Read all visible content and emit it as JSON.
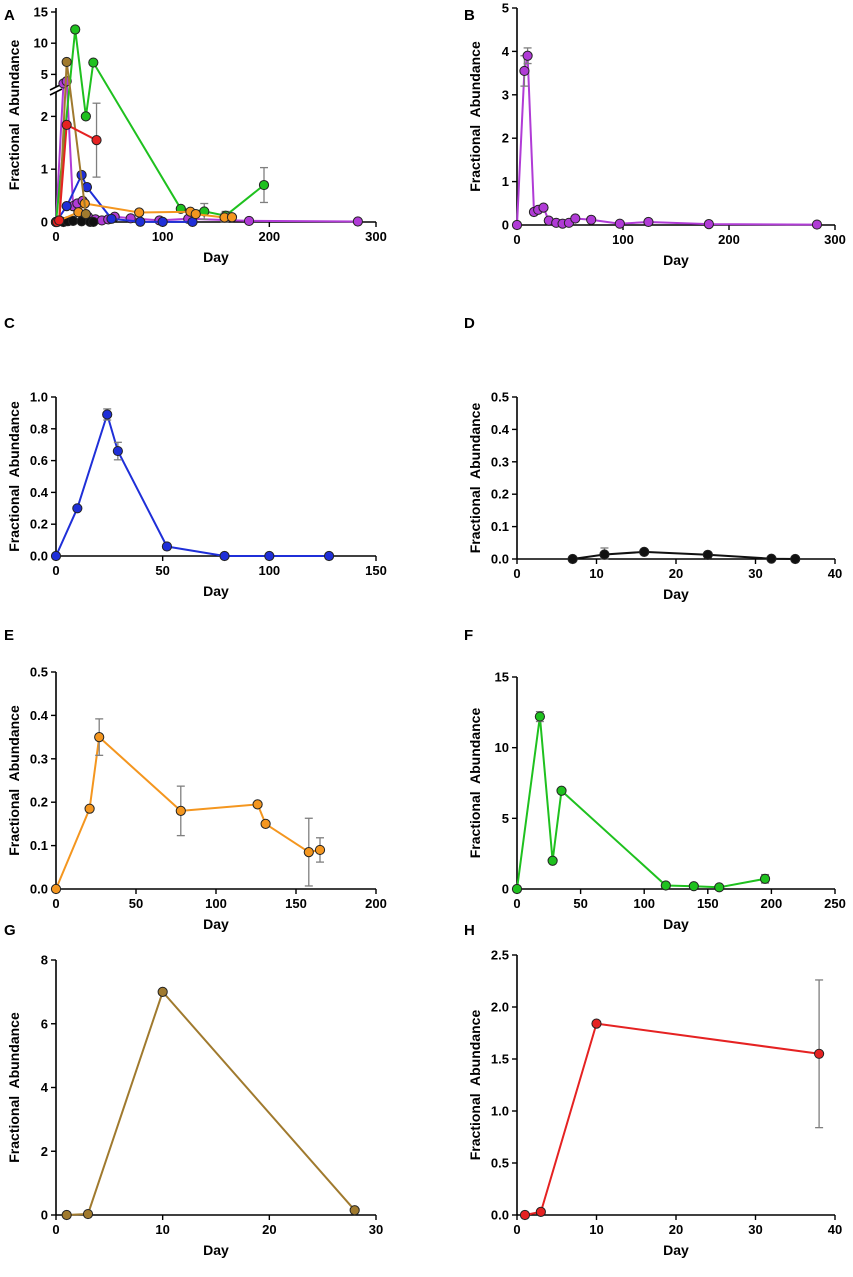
{
  "figure": {
    "chart_data": [
      {
        "panel": "A",
        "type": "line",
        "xlabel": "Day",
        "ylabel": "Fractional Abundance",
        "xlim": [
          0,
          300
        ],
        "x_ticks": [
          "0",
          "100",
          "200",
          "300"
        ],
        "y_break": true,
        "ylim_lower": [
          0,
          2.5
        ],
        "ylim_upper": [
          2.5,
          15
        ],
        "y_ticks": [
          "0",
          "1",
          "2",
          "5",
          "10",
          "15"
        ],
        "y_tick_values": [
          0,
          1,
          2,
          5,
          10,
          15
        ],
        "series": [
          {
            "name": "purple",
            "color": "#b03bd6",
            "x": [
              0,
              7,
              10,
              16,
              20,
              25,
              30,
              37,
              43,
              49,
              55,
              70,
              97,
              124,
              181,
              283
            ],
            "y": [
              0,
              3.55,
              3.9,
              0.3,
              0.35,
              0.4,
              0.1,
              0.05,
              0.03,
              0.05,
              0.1,
              0.07,
              0.03,
              0.06,
              0.02,
              0.01
            ],
            "err": [
              0,
              0.3,
              0.2,
              0,
              0,
              0,
              0,
              0,
              0,
              0,
              0,
              0,
              0,
              0,
              0,
              0
            ]
          },
          {
            "name": "green",
            "color": "#1fc11f",
            "x": [
              0,
              18,
              28,
              35,
              117,
              139,
              159,
              195
            ],
            "y": [
              0,
              12.2,
              2.0,
              6.9,
              0.25,
              0.2,
              0.12,
              0.7
            ],
            "err": [
              0,
              0.4,
              0,
              0,
              0,
              0.15,
              0.08,
              0.33
            ]
          },
          {
            "name": "blue",
            "color": "#1f2fd8",
            "x": [
              0,
              10,
              24,
              29,
              52,
              79,
              100,
              128
            ],
            "y": [
              0,
              0.3,
              0.89,
              0.66,
              0.06,
              0.005,
              0.002,
              0.001
            ],
            "err": [
              0,
              0,
              0.04,
              0.06,
              0,
              0,
              0,
              0
            ]
          },
          {
            "name": "black",
            "color": "#111111",
            "x": [
              0,
              7,
              11,
              16,
              24,
              32,
              35
            ],
            "y": [
              0,
              0,
              0.015,
              0.022,
              0.014,
              0.002,
              0.001
            ],
            "err": [
              0,
              0,
              0.02,
              0,
              0,
              0,
              0
            ]
          },
          {
            "name": "orange",
            "color": "#f4961f",
            "x": [
              0,
              21,
              27,
              78,
              126,
              131,
              158,
              165
            ],
            "y": [
              0,
              0.185,
              0.35,
              0.18,
              0.195,
              0.15,
              0.085,
              0.09
            ],
            "err": [
              0,
              0,
              0.04,
              0.055,
              0,
              0,
              0.08,
              0.03
            ]
          },
          {
            "name": "brown",
            "color": "#a07a2e",
            "x": [
              1,
              3,
              10,
              28
            ],
            "y": [
              0,
              0.03,
              7.0,
              0.15
            ],
            "err": [
              0,
              0,
              0,
              0
            ]
          },
          {
            "name": "red",
            "color": "#e52222",
            "x": [
              1,
              3,
              10,
              38
            ],
            "y": [
              0,
              0.03,
              1.84,
              1.55
            ],
            "err": [
              0,
              0,
              0,
              0.7
            ]
          }
        ]
      },
      {
        "panel": "B",
        "type": "line",
        "xlabel": "Day",
        "ylabel": "Fractional Abundance",
        "xlim": [
          0,
          300
        ],
        "ylim": [
          0,
          5
        ],
        "x_ticks": [
          "0",
          "100",
          "200",
          "300"
        ],
        "x_tick_values": [
          0,
          100,
          200,
          300
        ],
        "y_ticks": [
          "0",
          "1",
          "2",
          "3",
          "4",
          "5"
        ],
        "y_tick_values": [
          0,
          1,
          2,
          3,
          4,
          5
        ],
        "series": [
          {
            "name": "purple",
            "color": "#b03bd6",
            "x": [
              0,
              7,
              10,
              16,
              20,
              25,
              30,
              37,
              43,
              49,
              55,
              70,
              97,
              124,
              181,
              283
            ],
            "y": [
              0,
              3.55,
              3.9,
              0.3,
              0.35,
              0.4,
              0.1,
              0.05,
              0.03,
              0.05,
              0.15,
              0.12,
              0.03,
              0.07,
              0.02,
              0.01
            ],
            "err": [
              0,
              0.35,
              0.18,
              0,
              0,
              0,
              0,
              0,
              0,
              0,
              0,
              0,
              0,
              0,
              0,
              0
            ]
          }
        ]
      },
      {
        "panel": "C",
        "type": "line",
        "xlabel": "Day",
        "ylabel": "Fractional Abundance",
        "xlim": [
          0,
          150
        ],
        "ylim": [
          0,
          1.0
        ],
        "x_ticks": [
          "0",
          "50",
          "100",
          "150"
        ],
        "x_tick_values": [
          0,
          50,
          100,
          150
        ],
        "y_ticks": [
          "0.0",
          "0.2",
          "0.4",
          "0.6",
          "0.8",
          "1.0"
        ],
        "y_tick_values": [
          0,
          0.2,
          0.4,
          0.6,
          0.8,
          1.0
        ],
        "series": [
          {
            "name": "blue",
            "color": "#1f2fd8",
            "x": [
              0,
              10,
              24,
              29,
              52,
              79,
              100,
              128
            ],
            "y": [
              0,
              0.3,
              0.89,
              0.66,
              0.06,
              0.0,
              0.0,
              0.0
            ],
            "err": [
              0,
              0,
              0.035,
              0.055,
              0,
              0,
              0,
              0
            ]
          }
        ]
      },
      {
        "panel": "D",
        "type": "line",
        "xlabel": "Day",
        "ylabel": "Fractional Abundance",
        "xlim": [
          0,
          40
        ],
        "ylim": [
          0,
          0.5
        ],
        "x_ticks": [
          "0",
          "10",
          "20",
          "30",
          "40"
        ],
        "x_tick_values": [
          0,
          10,
          20,
          30,
          40
        ],
        "y_ticks": [
          "0.0",
          "0.1",
          "0.2",
          "0.3",
          "0.4",
          "0.5"
        ],
        "y_tick_values": [
          0,
          0.1,
          0.2,
          0.3,
          0.4,
          0.5
        ],
        "series": [
          {
            "name": "black",
            "color": "#111111",
            "x": [
              7,
              11,
              16,
              24,
              32,
              35
            ],
            "y": [
              0,
              0.014,
              0.022,
              0.013,
              0.001,
              0.0
            ],
            "err": [
              0,
              0.02,
              0,
              0,
              0,
              0
            ]
          }
        ]
      },
      {
        "panel": "E",
        "type": "line",
        "xlabel": "Day",
        "ylabel": "Fractional Abundance",
        "xlim": [
          0,
          200
        ],
        "ylim": [
          0,
          0.5
        ],
        "x_ticks": [
          "0",
          "50",
          "100",
          "150",
          "200"
        ],
        "x_tick_values": [
          0,
          50,
          100,
          150,
          200
        ],
        "y_ticks": [
          "0.0",
          "0.1",
          "0.2",
          "0.3",
          "0.4",
          "0.5"
        ],
        "y_tick_values": [
          0,
          0.1,
          0.2,
          0.3,
          0.4,
          0.5
        ],
        "series": [
          {
            "name": "orange",
            "color": "#f4961f",
            "x": [
              0,
              21,
              27,
              78,
              126,
              131,
              158,
              165
            ],
            "y": [
              0,
              0.185,
              0.35,
              0.18,
              0.195,
              0.15,
              0.085,
              0.09
            ],
            "err": [
              0,
              0,
              0.042,
              0.057,
              0,
              0,
              0.078,
              0.028
            ]
          }
        ]
      },
      {
        "panel": "F",
        "type": "line",
        "xlabel": "Day",
        "ylabel": "Fractional Abundance",
        "xlim": [
          0,
          250
        ],
        "ylim": [
          0,
          15
        ],
        "x_ticks": [
          "0",
          "50",
          "100",
          "150",
          "200",
          "250"
        ],
        "x_tick_values": [
          0,
          50,
          100,
          150,
          200,
          250
        ],
        "y_ticks": [
          "0",
          "5",
          "10",
          "15"
        ],
        "y_tick_values": [
          0,
          5,
          10,
          15
        ],
        "series": [
          {
            "name": "green",
            "color": "#1fc11f",
            "x": [
              0,
              18,
              28,
              35,
              117,
              139,
              159,
              195
            ],
            "y": [
              0,
              12.2,
              2.0,
              6.95,
              0.25,
              0.2,
              0.12,
              0.72
            ],
            "err": [
              0,
              0.35,
              0,
              0,
              0,
              0,
              0,
              0.3
            ]
          }
        ]
      },
      {
        "panel": "G",
        "type": "line",
        "xlabel": "Day",
        "ylabel": "Fractional Abundance",
        "xlim": [
          0,
          30
        ],
        "ylim": [
          0,
          8
        ],
        "x_ticks": [
          "0",
          "10",
          "20",
          "30"
        ],
        "x_tick_values": [
          0,
          10,
          20,
          30
        ],
        "y_ticks": [
          "0",
          "2",
          "4",
          "6",
          "8"
        ],
        "y_tick_values": [
          0,
          2,
          4,
          6,
          8
        ],
        "series": [
          {
            "name": "brown",
            "color": "#a07a2e",
            "x": [
              1,
              3,
              10,
              28
            ],
            "y": [
              0,
              0.03,
              7.0,
              0.15
            ],
            "err": [
              0,
              0,
              0,
              0
            ]
          }
        ]
      },
      {
        "panel": "H",
        "type": "line",
        "xlabel": "Day",
        "ylabel": "Fractional Abundance",
        "xlim": [
          0,
          40
        ],
        "ylim": [
          0,
          2.5
        ],
        "x_ticks": [
          "0",
          "10",
          "20",
          "30",
          "40"
        ],
        "x_tick_values": [
          0,
          10,
          20,
          30,
          40
        ],
        "y_ticks": [
          "0.0",
          "0.5",
          "1.0",
          "1.5",
          "2.0",
          "2.5"
        ],
        "y_tick_values": [
          0,
          0.5,
          1.0,
          1.5,
          2.0,
          2.5
        ],
        "series": [
          {
            "name": "red",
            "color": "#e52222",
            "x": [
              1,
              3,
              10,
              38
            ],
            "y": [
              0,
              0.03,
              1.84,
              1.55
            ],
            "err": [
              0,
              0,
              0,
              0.71
            ]
          }
        ]
      }
    ]
  }
}
